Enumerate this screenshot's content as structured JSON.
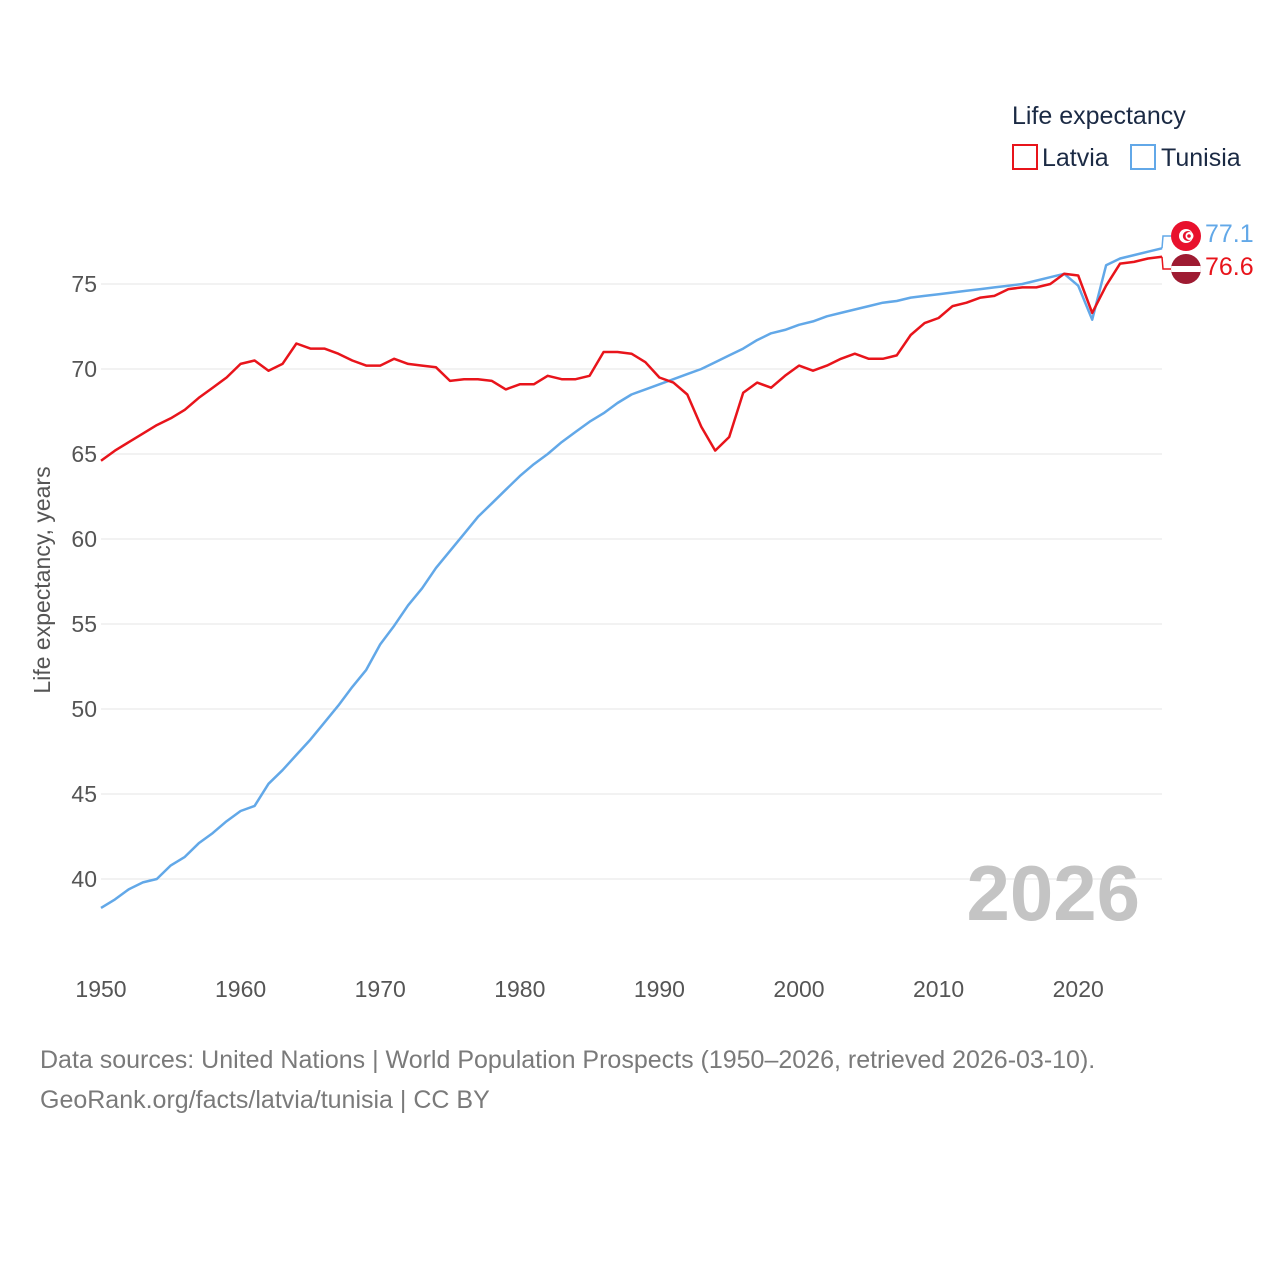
{
  "chart_data": {
    "type": "line",
    "title": "",
    "xlabel": "",
    "ylabel": "Life expectancy, years",
    "legend_title": "Life expectancy",
    "legend_position": "top-right",
    "year_label": "2026",
    "xlim": [
      1950,
      2026
    ],
    "ylim": [
      36,
      79
    ],
    "x_ticks": [
      1950,
      1960,
      1970,
      1980,
      1990,
      2000,
      2010,
      2020
    ],
    "y_ticks": [
      40,
      45,
      50,
      55,
      60,
      65,
      70,
      75
    ],
    "grid": true,
    "x": [
      1950,
      1951,
      1952,
      1953,
      1954,
      1955,
      1956,
      1957,
      1958,
      1959,
      1960,
      1961,
      1962,
      1963,
      1964,
      1965,
      1966,
      1967,
      1968,
      1969,
      1970,
      1971,
      1972,
      1973,
      1974,
      1975,
      1976,
      1977,
      1978,
      1979,
      1980,
      1981,
      1982,
      1983,
      1984,
      1985,
      1986,
      1987,
      1988,
      1989,
      1990,
      1991,
      1992,
      1993,
      1994,
      1995,
      1996,
      1997,
      1998,
      1999,
      2000,
      2001,
      2002,
      2003,
      2004,
      2005,
      2006,
      2007,
      2008,
      2009,
      2010,
      2011,
      2012,
      2013,
      2014,
      2015,
      2016,
      2017,
      2018,
      2019,
      2020,
      2021,
      2022,
      2023,
      2024,
      2025,
      2026
    ],
    "series": [
      {
        "name": "Latvia",
        "color": "#e8141b",
        "end_label": "76.6",
        "values": [
          64.6,
          65.2,
          65.7,
          66.2,
          66.7,
          67.1,
          67.6,
          68.3,
          68.9,
          69.5,
          70.3,
          70.5,
          69.9,
          70.3,
          71.5,
          71.2,
          71.2,
          70.9,
          70.5,
          70.2,
          70.2,
          70.6,
          70.3,
          70.2,
          70.1,
          69.3,
          69.4,
          69.4,
          69.3,
          68.8,
          69.1,
          69.1,
          69.6,
          69.4,
          69.4,
          69.6,
          71.0,
          71.0,
          70.9,
          70.4,
          69.5,
          69.2,
          68.5,
          66.6,
          65.2,
          66.0,
          68.6,
          69.2,
          68.9,
          69.6,
          70.2,
          69.9,
          70.2,
          70.6,
          70.9,
          70.6,
          70.6,
          70.8,
          72.0,
          72.7,
          73.0,
          73.7,
          73.9,
          74.2,
          74.3,
          74.7,
          74.8,
          74.8,
          75.0,
          75.6,
          75.5,
          73.3,
          74.9,
          76.2,
          76.3,
          76.5,
          76.6
        ]
      },
      {
        "name": "Tunisia",
        "color": "#62a8e8",
        "end_label": "77.1",
        "values": [
          38.3,
          38.8,
          39.4,
          39.8,
          40.0,
          40.8,
          41.3,
          42.1,
          42.7,
          43.4,
          44.0,
          44.3,
          45.6,
          46.4,
          47.3,
          48.2,
          49.2,
          50.2,
          51.3,
          52.3,
          53.8,
          54.9,
          56.1,
          57.1,
          58.3,
          59.3,
          60.3,
          61.3,
          62.1,
          62.9,
          63.7,
          64.4,
          65.0,
          65.7,
          66.3,
          66.9,
          67.4,
          68.0,
          68.5,
          68.8,
          69.1,
          69.4,
          69.7,
          70.0,
          70.4,
          70.8,
          71.2,
          71.7,
          72.1,
          72.3,
          72.6,
          72.8,
          73.1,
          73.3,
          73.5,
          73.7,
          73.9,
          74.0,
          74.2,
          74.3,
          74.4,
          74.5,
          74.6,
          74.7,
          74.8,
          74.9,
          75.0,
          75.2,
          75.4,
          75.6,
          74.9,
          72.9,
          76.1,
          76.5,
          76.7,
          76.9,
          77.1
        ]
      }
    ]
  },
  "source": {
    "line1": "Data sources: United Nations | World Population Prospects (1950–2026, retrieved 2026-03-10).",
    "line2": "GeoRank.org/facts/latvia/tunisia | CC BY"
  }
}
